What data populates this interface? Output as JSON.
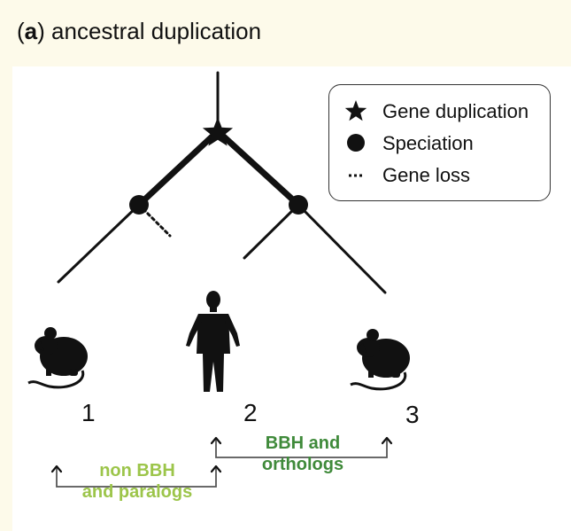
{
  "panel": {
    "letter": "a",
    "title": "ancestral duplication"
  },
  "legend": {
    "items": [
      {
        "symbol": "star-icon",
        "label": "Gene duplication"
      },
      {
        "symbol": "circle-icon",
        "label": "Speciation"
      },
      {
        "symbol": "dotted-line-icon",
        "label": "Gene loss"
      }
    ]
  },
  "species": [
    {
      "number": "1",
      "icon": "mouse-icon"
    },
    {
      "number": "2",
      "icon": "human-icon"
    },
    {
      "number": "3",
      "icon": "mouse-icon"
    }
  ],
  "comparisons": {
    "right": {
      "line1": "BBH and",
      "line2": "orthologs",
      "color": "#3f8a3a"
    },
    "left": {
      "line1": "non BBH",
      "line2": "and paralogs",
      "color": "#9cc54a"
    }
  }
}
